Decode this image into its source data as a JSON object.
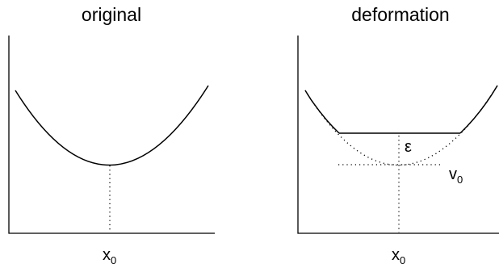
{
  "panels": [
    {
      "title": "original",
      "x_label_main": "x",
      "x_label_sub": "0"
    },
    {
      "title": "deformation",
      "x_label_main": "x",
      "x_label_sub": "0",
      "epsilon_label": "ε",
      "v_label_main": "v",
      "v_label_sub": "0"
    }
  ]
}
